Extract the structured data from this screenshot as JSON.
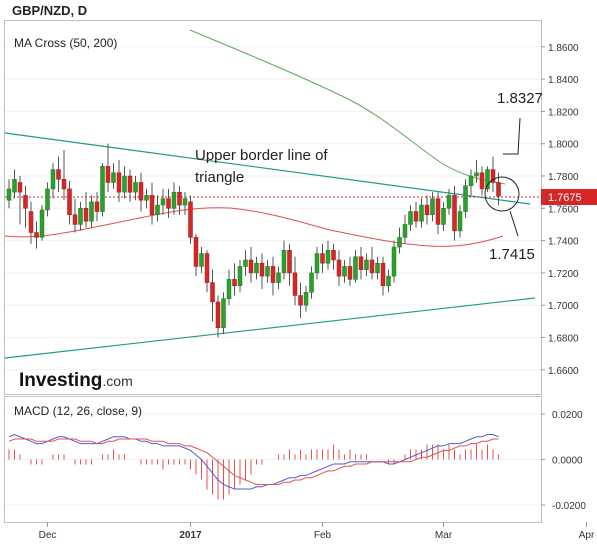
{
  "title": "GBP/NZD, D",
  "indicator_label": "MA Cross (50, 200)",
  "macd_label": "MACD (12, 26, close, 9)",
  "logo": {
    "brand": "Investing",
    "suffix": ".com"
  },
  "annotations": {
    "upper_border": "Upper border line of triangle",
    "high_level": "1.8327",
    "low_level": "1.7415"
  },
  "current_price": "1.7675",
  "colors": {
    "bull": "#2ca02c",
    "bear": "#d62728",
    "ma50": "#e05050",
    "ma200": "#5fa65f",
    "trend": "#1f9a88",
    "macd": "#4a5fd0",
    "signal": "#e05050",
    "price_tag": "#d62728"
  },
  "chart_data": [
    {
      "type": "candlestick",
      "title": "GBP/NZD, D",
      "ylim": [
        1.645,
        1.876
      ],
      "y_ticks": [
        "1.6600",
        "1.6800",
        "1.7000",
        "1.7200",
        "1.7400",
        "1.7600",
        "1.7800",
        "1.8000",
        "1.8200",
        "1.8400",
        "1.8600"
      ],
      "x_ticks": [
        "Dec",
        "2017",
        "Feb",
        "Mar",
        "Apr"
      ],
      "x_tick_index": [
        7,
        33,
        57,
        79,
        105
      ],
      "bars": [
        [
          1.765,
          1.778,
          1.772,
          1.76
        ],
        [
          1.77,
          1.784,
          1.778,
          1.766
        ],
        [
          1.776,
          1.78,
          1.77,
          1.75
        ],
        [
          1.768,
          1.774,
          1.76,
          1.748
        ],
        [
          1.758,
          1.764,
          1.745,
          1.738
        ],
        [
          1.745,
          1.752,
          1.742,
          1.735
        ],
        [
          1.742,
          1.762,
          1.759,
          1.74
        ],
        [
          1.759,
          1.776,
          1.772,
          1.755
        ],
        [
          1.772,
          1.788,
          1.784,
          1.766
        ],
        [
          1.784,
          1.792,
          1.778,
          1.77
        ],
        [
          1.778,
          1.796,
          1.772,
          1.765
        ],
        [
          1.772,
          1.777,
          1.756,
          1.75
        ],
        [
          1.756,
          1.766,
          1.75,
          1.745
        ],
        [
          1.75,
          1.764,
          1.76,
          1.746
        ],
        [
          1.76,
          1.77,
          1.752,
          1.748
        ],
        [
          1.752,
          1.768,
          1.764,
          1.748
        ],
        [
          1.764,
          1.77,
          1.758,
          1.752
        ],
        [
          1.758,
          1.788,
          1.786,
          1.755
        ],
        [
          1.786,
          1.8,
          1.776,
          1.77
        ],
        [
          1.776,
          1.788,
          1.782,
          1.772
        ],
        [
          1.782,
          1.79,
          1.77,
          1.764
        ],
        [
          1.77,
          1.786,
          1.78,
          1.766
        ],
        [
          1.78,
          1.784,
          1.77,
          1.764
        ],
        [
          1.77,
          1.78,
          1.776,
          1.765
        ],
        [
          1.776,
          1.782,
          1.765,
          1.758
        ],
        [
          1.765,
          1.772,
          1.768,
          1.76
        ],
        [
          1.768,
          1.776,
          1.756,
          1.75
        ],
        [
          1.756,
          1.768,
          1.762,
          1.752
        ],
        [
          1.762,
          1.772,
          1.766,
          1.756
        ],
        [
          1.766,
          1.772,
          1.76,
          1.754
        ],
        [
          1.76,
          1.776,
          1.77,
          1.756
        ],
        [
          1.77,
          1.774,
          1.762,
          1.756
        ],
        [
          1.762,
          1.77,
          1.766,
          1.756
        ],
        [
          1.764,
          1.768,
          1.742,
          1.738
        ],
        [
          1.742,
          1.744,
          1.724,
          1.718
        ],
        [
          1.724,
          1.736,
          1.732,
          1.72
        ],
        [
          1.732,
          1.734,
          1.714,
          1.708
        ],
        [
          1.714,
          1.722,
          1.702,
          1.69
        ],
        [
          1.702,
          1.706,
          1.686,
          1.68
        ],
        [
          1.686,
          1.708,
          1.704,
          1.682
        ],
        [
          1.704,
          1.722,
          1.716,
          1.7
        ],
        [
          1.716,
          1.726,
          1.712,
          1.706
        ],
        [
          1.712,
          1.728,
          1.724,
          1.708
        ],
        [
          1.724,
          1.734,
          1.728,
          1.718
        ],
        [
          1.728,
          1.736,
          1.72,
          1.714
        ],
        [
          1.72,
          1.73,
          1.726,
          1.716
        ],
        [
          1.726,
          1.732,
          1.718,
          1.71
        ],
        [
          1.718,
          1.728,
          1.724,
          1.714
        ],
        [
          1.724,
          1.73,
          1.714,
          1.706
        ],
        [
          1.714,
          1.724,
          1.72,
          1.71
        ],
        [
          1.72,
          1.74,
          1.734,
          1.716
        ],
        [
          1.734,
          1.738,
          1.72,
          1.712
        ],
        [
          1.72,
          1.73,
          1.706,
          1.7
        ],
        [
          1.706,
          1.714,
          1.7,
          1.692
        ],
        [
          1.7,
          1.712,
          1.708,
          1.696
        ],
        [
          1.708,
          1.724,
          1.72,
          1.704
        ],
        [
          1.72,
          1.736,
          1.732,
          1.716
        ],
        [
          1.732,
          1.738,
          1.726,
          1.72
        ],
        [
          1.726,
          1.74,
          1.734,
          1.722
        ],
        [
          1.734,
          1.738,
          1.728,
          1.722
        ],
        [
          1.728,
          1.734,
          1.718,
          1.712
        ],
        [
          1.718,
          1.728,
          1.724,
          1.714
        ],
        [
          1.724,
          1.73,
          1.716,
          1.712
        ],
        [
          1.716,
          1.734,
          1.73,
          1.714
        ],
        [
          1.73,
          1.736,
          1.722,
          1.716
        ],
        [
          1.722,
          1.732,
          1.728,
          1.718
        ],
        [
          1.728,
          1.736,
          1.72,
          1.716
        ],
        [
          1.72,
          1.73,
          1.726,
          1.716
        ],
        [
          1.726,
          1.73,
          1.712,
          1.706
        ],
        [
          1.712,
          1.722,
          1.718,
          1.708
        ],
        [
          1.718,
          1.74,
          1.736,
          1.714
        ],
        [
          1.736,
          1.748,
          1.742,
          1.732
        ],
        [
          1.742,
          1.756,
          1.75,
          1.738
        ],
        [
          1.75,
          1.762,
          1.758,
          1.746
        ],
        [
          1.758,
          1.764,
          1.752,
          1.748
        ],
        [
          1.752,
          1.766,
          1.762,
          1.748
        ],
        [
          1.762,
          1.768,
          1.756,
          1.75
        ],
        [
          1.756,
          1.77,
          1.766,
          1.752
        ],
        [
          1.766,
          1.77,
          1.75,
          1.744
        ],
        [
          1.75,
          1.764,
          1.76,
          1.746
        ],
        [
          1.76,
          1.772,
          1.768,
          1.756
        ],
        [
          1.768,
          1.774,
          1.746,
          1.74
        ],
        [
          1.746,
          1.762,
          1.758,
          1.742
        ],
        [
          1.758,
          1.778,
          1.774,
          1.754
        ],
        [
          1.774,
          1.784,
          1.78,
          1.768
        ],
        [
          1.78,
          1.79,
          1.782,
          1.776
        ],
        [
          1.782,
          1.786,
          1.772,
          1.768
        ],
        [
          1.772,
          1.786,
          1.784,
          1.77
        ],
        [
          1.784,
          1.792,
          1.776,
          1.77
        ],
        [
          1.776,
          1.782,
          1.7675,
          1.762
        ]
      ]
    },
    {
      "type": "line",
      "title": "MACD (12, 26, close, 9)",
      "ylim": [
        -0.0275,
        0.0275
      ],
      "y_ticks": [
        "0.0200",
        "0.0000",
        "-0.0200"
      ],
      "series": [
        {
          "values": [
            0.01,
            0.011,
            0.01,
            0.009,
            0.008,
            0.007,
            0.007,
            0.008,
            0.009,
            0.01,
            0.01,
            0.009,
            0.008,
            0.007,
            0.007,
            0.007,
            0.007,
            0.008,
            0.009,
            0.01,
            0.01,
            0.01,
            0.009,
            0.009,
            0.008,
            0.008,
            0.007,
            0.007,
            0.006,
            0.006,
            0.006,
            0.006,
            0.005,
            0.004,
            0.002,
            0.0,
            -0.003,
            -0.006,
            -0.009,
            -0.011,
            -0.012,
            -0.013,
            -0.013,
            -0.013,
            -0.013,
            -0.012,
            -0.012,
            -0.011,
            -0.011,
            -0.01,
            -0.009,
            -0.008,
            -0.008,
            -0.007,
            -0.007,
            -0.006,
            -0.005,
            -0.004,
            -0.003,
            -0.002,
            -0.002,
            -0.002,
            -0.001,
            -0.001,
            -0.001,
            -0.001,
            -0.001,
            -0.001,
            -0.001,
            -0.002,
            -0.002,
            -0.001,
            0.0,
            0.001,
            0.002,
            0.003,
            0.004,
            0.005,
            0.006,
            0.006,
            0.007,
            0.007,
            0.007,
            0.008,
            0.009,
            0.01,
            0.01,
            0.011,
            0.011,
            0.01
          ]
        },
        {
          "values": [
            0.008,
            0.009,
            0.009,
            0.009,
            0.009,
            0.008,
            0.008,
            0.008,
            0.008,
            0.009,
            0.009,
            0.009,
            0.009,
            0.008,
            0.008,
            0.008,
            0.007,
            0.007,
            0.008,
            0.008,
            0.009,
            0.009,
            0.009,
            0.009,
            0.009,
            0.009,
            0.008,
            0.008,
            0.008,
            0.007,
            0.007,
            0.007,
            0.006,
            0.006,
            0.005,
            0.004,
            0.003,
            0.001,
            -0.001,
            -0.003,
            -0.005,
            -0.007,
            -0.008,
            -0.009,
            -0.01,
            -0.011,
            -0.011,
            -0.011,
            -0.011,
            -0.011,
            -0.01,
            -0.01,
            -0.009,
            -0.009,
            -0.008,
            -0.008,
            -0.007,
            -0.006,
            -0.005,
            -0.005,
            -0.004,
            -0.003,
            -0.003,
            -0.002,
            -0.002,
            -0.002,
            -0.001,
            -0.001,
            -0.001,
            -0.001,
            -0.001,
            -0.001,
            -0.001,
            -0.001,
            0.0,
            0.001,
            0.001,
            0.002,
            0.003,
            0.004,
            0.004,
            0.005,
            0.006,
            0.006,
            0.007,
            0.007,
            0.008,
            0.008,
            0.009,
            0.009
          ]
        }
      ]
    }
  ]
}
